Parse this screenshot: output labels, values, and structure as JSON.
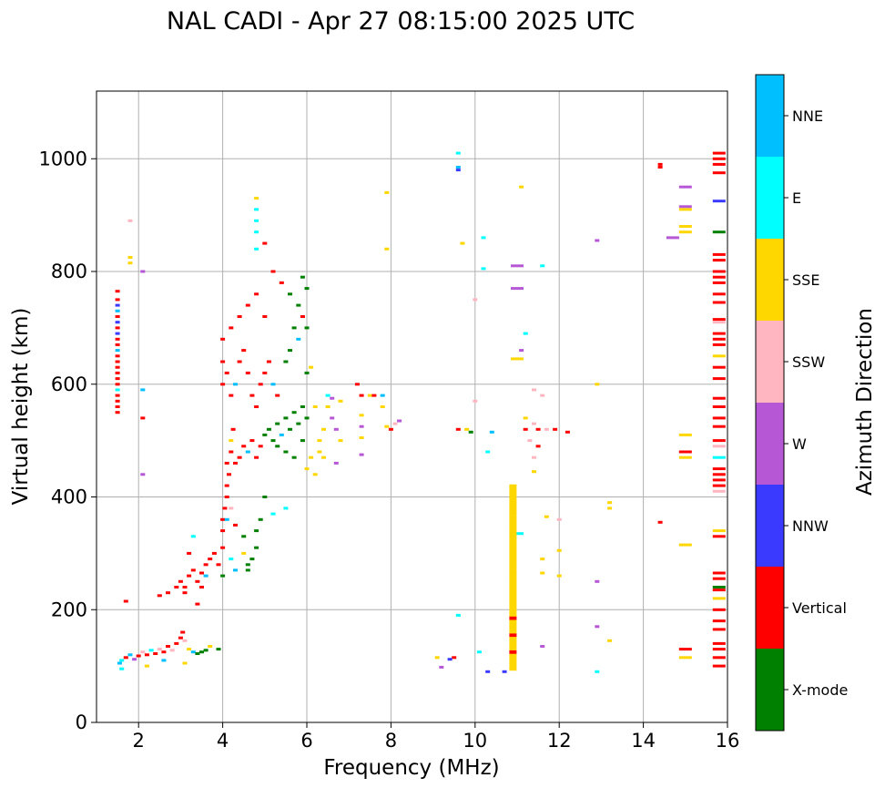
{
  "chart_data": {
    "type": "scatter",
    "title": "NAL CADI - Apr 27 08:15:00 2025 UTC",
    "xlabel": "Frequency (MHz)",
    "ylabel": "Virtual height (km)",
    "xlim": [
      1,
      16
    ],
    "ylim": [
      0,
      1120
    ],
    "xticks": [
      2,
      4,
      6,
      8,
      10,
      12,
      14,
      16
    ],
    "yticks": [
      0,
      200,
      400,
      600,
      800,
      1000
    ],
    "grid": true,
    "colorbar": {
      "label": "Azimuth Direction",
      "categories": [
        {
          "name": "X-mode",
          "color": "#008000"
        },
        {
          "name": "Vertical",
          "color": "#ff0000"
        },
        {
          "name": "NNW",
          "color": "#3a3aff"
        },
        {
          "name": "W",
          "color": "#b657d6"
        },
        {
          "name": "SSW",
          "color": "#ffb6c1"
        },
        {
          "name": "SSE",
          "color": "#ffd700"
        },
        {
          "name": "E",
          "color": "#00ffff"
        },
        {
          "name": "NNE",
          "color": "#00bfff"
        }
      ]
    },
    "points": [
      [
        1.5,
        550,
        1
      ],
      [
        1.5,
        560,
        1
      ],
      [
        1.5,
        570,
        1
      ],
      [
        1.5,
        580,
        1
      ],
      [
        1.5,
        590,
        6
      ],
      [
        1.5,
        600,
        1
      ],
      [
        1.5,
        610,
        1
      ],
      [
        1.5,
        620,
        1
      ],
      [
        1.5,
        630,
        1
      ],
      [
        1.5,
        640,
        1
      ],
      [
        1.5,
        650,
        1
      ],
      [
        1.5,
        660,
        7
      ],
      [
        1.5,
        670,
        1
      ],
      [
        1.5,
        680,
        1
      ],
      [
        1.5,
        690,
        2
      ],
      [
        1.5,
        700,
        1
      ],
      [
        1.5,
        710,
        2
      ],
      [
        1.5,
        720,
        1
      ],
      [
        1.5,
        730,
        7
      ],
      [
        1.5,
        740,
        2
      ],
      [
        1.5,
        750,
        1
      ],
      [
        1.5,
        765,
        1
      ],
      [
        1.55,
        105,
        7
      ],
      [
        1.6,
        110,
        6
      ],
      [
        1.7,
        115,
        1
      ],
      [
        1.8,
        120,
        7
      ],
      [
        1.9,
        112,
        3
      ],
      [
        2.0,
        118,
        1
      ],
      [
        2.1,
        125,
        4
      ],
      [
        2.2,
        120,
        1
      ],
      [
        2.3,
        128,
        6
      ],
      [
        2.4,
        122,
        1
      ],
      [
        2.5,
        130,
        4
      ],
      [
        2.6,
        125,
        1
      ],
      [
        2.7,
        135,
        1
      ],
      [
        2.8,
        128,
        4
      ],
      [
        2.9,
        140,
        1
      ],
      [
        3.0,
        150,
        1
      ],
      [
        3.05,
        160,
        1
      ],
      [
        3.1,
        145,
        4
      ],
      [
        3.2,
        130,
        5
      ],
      [
        3.3,
        125,
        7
      ],
      [
        3.4,
        122,
        0
      ],
      [
        3.5,
        125,
        0
      ],
      [
        3.6,
        128,
        0
      ],
      [
        3.7,
        135,
        5
      ],
      [
        3.9,
        130,
        0
      ],
      [
        1.6,
        95,
        6
      ],
      [
        2.2,
        100,
        5
      ],
      [
        2.6,
        110,
        7
      ],
      [
        3.1,
        105,
        5
      ],
      [
        1.8,
        815,
        5
      ],
      [
        1.8,
        825,
        5
      ],
      [
        1.8,
        890,
        4
      ],
      [
        2.1,
        800,
        3
      ],
      [
        2.1,
        590,
        7
      ],
      [
        2.1,
        540,
        1
      ],
      [
        2.1,
        440,
        3
      ],
      [
        1.7,
        215,
        1
      ],
      [
        2.5,
        225,
        1
      ],
      [
        2.7,
        230,
        1
      ],
      [
        2.9,
        240,
        1
      ],
      [
        3.0,
        250,
        1
      ],
      [
        3.1,
        240,
        1
      ],
      [
        3.2,
        260,
        1
      ],
      [
        3.3,
        270,
        1
      ],
      [
        3.4,
        250,
        1
      ],
      [
        3.5,
        265,
        1
      ],
      [
        3.6,
        280,
        1
      ],
      [
        3.7,
        290,
        1
      ],
      [
        3.8,
        300,
        1
      ],
      [
        3.9,
        280,
        1
      ],
      [
        4.0,
        310,
        1
      ],
      [
        3.2,
        300,
        1
      ],
      [
        3.3,
        330,
        6
      ],
      [
        3.5,
        240,
        1
      ],
      [
        3.1,
        230,
        1
      ],
      [
        3.4,
        210,
        1
      ],
      [
        3.6,
        260,
        7
      ],
      [
        4.0,
        340,
        1
      ],
      [
        4.0,
        360,
        1
      ],
      [
        4.05,
        380,
        1
      ],
      [
        4.1,
        400,
        1
      ],
      [
        4.1,
        420,
        1
      ],
      [
        4.15,
        440,
        1
      ],
      [
        4.1,
        460,
        1
      ],
      [
        4.2,
        480,
        1
      ],
      [
        4.2,
        500,
        5
      ],
      [
        4.25,
        520,
        1
      ],
      [
        4.3,
        460,
        1
      ],
      [
        4.4,
        470,
        1
      ],
      [
        4.5,
        490,
        1
      ],
      [
        4.6,
        480,
        7
      ],
      [
        4.7,
        500,
        1
      ],
      [
        4.8,
        470,
        1
      ],
      [
        4.9,
        490,
        1
      ],
      [
        5.0,
        510,
        0
      ],
      [
        5.1,
        520,
        0
      ],
      [
        5.2,
        500,
        0
      ],
      [
        5.3,
        530,
        0
      ],
      [
        5.4,
        510,
        7
      ],
      [
        5.5,
        540,
        0
      ],
      [
        5.6,
        520,
        0
      ],
      [
        5.7,
        550,
        0
      ],
      [
        5.8,
        530,
        0
      ],
      [
        5.9,
        560,
        0
      ],
      [
        6.0,
        540,
        0
      ],
      [
        5.3,
        490,
        0
      ],
      [
        5.5,
        480,
        0
      ],
      [
        5.7,
        470,
        0
      ],
      [
        5.9,
        500,
        0
      ],
      [
        4.0,
        600,
        1
      ],
      [
        4.0,
        640,
        1
      ],
      [
        4.0,
        680,
        1
      ],
      [
        4.1,
        620,
        1
      ],
      [
        4.2,
        580,
        1
      ],
      [
        4.3,
        600,
        7
      ],
      [
        4.4,
        640,
        1
      ],
      [
        4.5,
        660,
        1
      ],
      [
        4.6,
        620,
        1
      ],
      [
        4.7,
        580,
        1
      ],
      [
        4.8,
        560,
        1
      ],
      [
        4.9,
        600,
        1
      ],
      [
        5.0,
        620,
        1
      ],
      [
        5.1,
        640,
        1
      ],
      [
        5.2,
        600,
        7
      ],
      [
        5.3,
        580,
        1
      ],
      [
        4.2,
        700,
        1
      ],
      [
        4.4,
        720,
        1
      ],
      [
        4.6,
        740,
        1
      ],
      [
        4.8,
        760,
        1
      ],
      [
        5.0,
        720,
        1
      ],
      [
        4.8,
        930,
        5
      ],
      [
        4.8,
        910,
        6
      ],
      [
        4.8,
        890,
        6
      ],
      [
        4.8,
        870,
        6
      ],
      [
        4.8,
        840,
        6
      ],
      [
        5.0,
        850,
        1
      ],
      [
        5.2,
        800,
        1
      ],
      [
        5.4,
        780,
        1
      ],
      [
        5.6,
        760,
        0
      ],
      [
        5.8,
        740,
        0
      ],
      [
        5.9,
        790,
        0
      ],
      [
        6.0,
        770,
        0
      ],
      [
        6.0,
        700,
        0
      ],
      [
        5.8,
        680,
        7
      ],
      [
        5.6,
        660,
        0
      ],
      [
        5.5,
        640,
        0
      ],
      [
        6.0,
        620,
        0
      ],
      [
        5.7,
        700,
        0
      ],
      [
        5.9,
        720,
        1
      ],
      [
        6.1,
        630,
        5
      ],
      [
        6.2,
        560,
        5
      ],
      [
        6.3,
        500,
        5
      ],
      [
        6.3,
        480,
        5
      ],
      [
        6.4,
        520,
        5
      ],
      [
        6.5,
        560,
        5
      ],
      [
        6.6,
        540,
        3
      ],
      [
        6.7,
        520,
        3
      ],
      [
        6.8,
        500,
        5
      ],
      [
        6.1,
        470,
        5
      ],
      [
        6.0,
        450,
        5
      ],
      [
        6.2,
        440,
        5
      ],
      [
        6.4,
        470,
        5
      ],
      [
        6.7,
        460,
        3
      ],
      [
        6.5,
        580,
        6
      ],
      [
        6.6,
        575,
        3
      ],
      [
        6.8,
        570,
        5
      ],
      [
        4.1,
        360,
        7
      ],
      [
        4.2,
        380,
        4
      ],
      [
        4.3,
        350,
        1
      ],
      [
        4.5,
        330,
        0
      ],
      [
        4.5,
        300,
        5
      ],
      [
        4.6,
        280,
        0
      ],
      [
        4.6,
        270,
        0
      ],
      [
        4.7,
        290,
        0
      ],
      [
        4.8,
        310,
        0
      ],
      [
        4.8,
        340,
        0
      ],
      [
        4.9,
        360,
        0
      ],
      [
        4.3,
        270,
        7
      ],
      [
        4.0,
        260,
        0
      ],
      [
        5.0,
        400,
        0
      ],
      [
        5.2,
        370,
        6
      ],
      [
        5.5,
        380,
        6
      ],
      [
        4.2,
        290,
        6
      ],
      [
        7.2,
        600,
        1
      ],
      [
        7.3,
        580,
        1
      ],
      [
        7.5,
        580,
        5
      ],
      [
        7.6,
        580,
        1
      ],
      [
        7.8,
        580,
        7
      ],
      [
        7.8,
        560,
        5
      ],
      [
        7.3,
        545,
        5
      ],
      [
        7.3,
        525,
        3
      ],
      [
        7.3,
        505,
        5
      ],
      [
        7.3,
        475,
        3
      ],
      [
        7.9,
        525,
        5
      ],
      [
        8.1,
        530,
        4
      ],
      [
        8.2,
        535,
        3
      ],
      [
        7.9,
        940,
        5
      ],
      [
        7.9,
        840,
        5
      ],
      [
        8.0,
        520,
        1
      ],
      [
        9.6,
        1010,
        6
      ],
      [
        9.6,
        985,
        7
      ],
      [
        9.6,
        980,
        2
      ],
      [
        9.7,
        850,
        5
      ],
      [
        10.2,
        860,
        6
      ],
      [
        10.2,
        805,
        6
      ],
      [
        10.0,
        750,
        4
      ],
      [
        10.0,
        570,
        4
      ],
      [
        9.6,
        520,
        1
      ],
      [
        9.8,
        520,
        5
      ],
      [
        9.9,
        515,
        0
      ],
      [
        10.3,
        480,
        6
      ],
      [
        10.4,
        515,
        7
      ],
      [
        9.6,
        190,
        6
      ],
      [
        9.5,
        115,
        1
      ],
      [
        9.4,
        112,
        2
      ],
      [
        9.1,
        115,
        5
      ],
      [
        9.2,
        98,
        3
      ],
      [
        10.1,
        125,
        6
      ],
      [
        10.3,
        90,
        2
      ],
      [
        10.7,
        90,
        2
      ],
      [
        11.1,
        950,
        5
      ],
      [
        11.0,
        810,
        3
      ],
      [
        11.0,
        770,
        3
      ],
      [
        11.2,
        690,
        6
      ],
      [
        11.1,
        660,
        3
      ],
      [
        11.0,
        645,
        5
      ],
      [
        11.2,
        540,
        5
      ],
      [
        11.4,
        530,
        4
      ],
      [
        11.2,
        520,
        1
      ],
      [
        11.5,
        520,
        1
      ],
      [
        11.7,
        520,
        4
      ],
      [
        11.9,
        520,
        1
      ],
      [
        12.2,
        515,
        1
      ],
      [
        11.3,
        500,
        4
      ],
      [
        11.5,
        490,
        1
      ],
      [
        11.4,
        470,
        4
      ],
      [
        11.4,
        445,
        5
      ],
      [
        11.0,
        335,
        6
      ],
      [
        11.4,
        590,
        4
      ],
      [
        11.6,
        580,
        4
      ],
      [
        11.6,
        810,
        6
      ],
      [
        11.7,
        365,
        5
      ],
      [
        12.0,
        360,
        4
      ],
      [
        11.6,
        290,
        5
      ],
      [
        12.0,
        305,
        5
      ],
      [
        11.6,
        265,
        5
      ],
      [
        12.0,
        260,
        5
      ],
      [
        11.6,
        135,
        3
      ],
      [
        12.9,
        855,
        3
      ],
      [
        12.9,
        600,
        5
      ],
      [
        13.2,
        390,
        5
      ],
      [
        13.2,
        380,
        5
      ],
      [
        12.9,
        250,
        3
      ],
      [
        12.9,
        170,
        3
      ],
      [
        13.2,
        145,
        5
      ],
      [
        12.9,
        90,
        6
      ],
      [
        14.4,
        990,
        1
      ],
      [
        14.4,
        985,
        1
      ],
      [
        14.7,
        860,
        3
      ],
      [
        15.0,
        950,
        3
      ],
      [
        15.0,
        915,
        3
      ],
      [
        15.0,
        910,
        5
      ],
      [
        15.0,
        880,
        5
      ],
      [
        15.0,
        870,
        5
      ],
      [
        15.0,
        510,
        5
      ],
      [
        15.0,
        480,
        1
      ],
      [
        15.0,
        470,
        5
      ],
      [
        14.4,
        355,
        1
      ],
      [
        15.0,
        315,
        5
      ],
      [
        15.0,
        130,
        1
      ],
      [
        15.0,
        115,
        5
      ],
      [
        15.8,
        1010,
        1
      ],
      [
        15.8,
        1000,
        1
      ],
      [
        15.8,
        990,
        1
      ],
      [
        15.8,
        975,
        1
      ],
      [
        15.8,
        925,
        2
      ],
      [
        15.8,
        870,
        0
      ],
      [
        15.8,
        830,
        1
      ],
      [
        15.8,
        820,
        1
      ],
      [
        15.8,
        800,
        1
      ],
      [
        15.8,
        790,
        1
      ],
      [
        15.8,
        780,
        1
      ],
      [
        15.8,
        760,
        1
      ],
      [
        15.8,
        745,
        1
      ],
      [
        15.8,
        715,
        1
      ],
      [
        15.8,
        710,
        4
      ],
      [
        15.8,
        690,
        1
      ],
      [
        15.8,
        680,
        1
      ],
      [
        15.8,
        670,
        1
      ],
      [
        15.8,
        650,
        5
      ],
      [
        15.8,
        630,
        1
      ],
      [
        15.8,
        610,
        1
      ],
      [
        15.8,
        575,
        1
      ],
      [
        15.8,
        560,
        1
      ],
      [
        15.8,
        540,
        1
      ],
      [
        15.8,
        525,
        1
      ],
      [
        15.8,
        500,
        1
      ],
      [
        15.8,
        490,
        4
      ],
      [
        15.8,
        470,
        6
      ],
      [
        15.8,
        450,
        1
      ],
      [
        15.8,
        440,
        1
      ],
      [
        15.8,
        430,
        1
      ],
      [
        15.8,
        420,
        1
      ],
      [
        15.8,
        410,
        4
      ],
      [
        15.8,
        340,
        5
      ],
      [
        15.8,
        330,
        1
      ],
      [
        15.8,
        265,
        1
      ],
      [
        15.8,
        255,
        1
      ],
      [
        15.8,
        240,
        0
      ],
      [
        15.8,
        235,
        1
      ],
      [
        15.8,
        220,
        5
      ],
      [
        15.8,
        200,
        1
      ],
      [
        15.8,
        180,
        1
      ],
      [
        15.8,
        165,
        1
      ],
      [
        15.8,
        140,
        1
      ],
      [
        15.8,
        130,
        1
      ],
      [
        15.8,
        115,
        1
      ],
      [
        15.8,
        100,
        1
      ]
    ]
  }
}
